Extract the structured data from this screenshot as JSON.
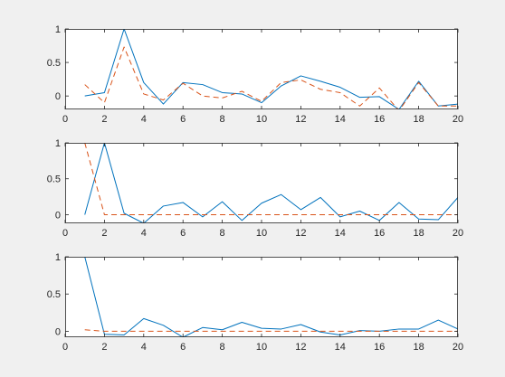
{
  "figure": {
    "background": "#f0f0f0",
    "axes_color": "#262626"
  },
  "colors": {
    "solid": "#0072bd",
    "dashed": "#d95319"
  },
  "chart_data": [
    {
      "type": "line",
      "xlim": [
        0,
        20
      ],
      "ylim": [
        -0.2,
        1
      ],
      "xticks": [
        0,
        2,
        4,
        6,
        8,
        10,
        12,
        14,
        16,
        18,
        20
      ],
      "yticks": [
        0,
        0.5,
        1
      ],
      "xtick_labels": [
        "0",
        "2",
        "4",
        "6",
        "8",
        "10",
        "12",
        "14",
        "16",
        "18",
        "20"
      ],
      "ytick_labels": [
        "0",
        "0.5",
        "1"
      ],
      "grid": false,
      "series": [
        {
          "style": "solid",
          "color": "#0072bd",
          "x": [
            1,
            2,
            3,
            4,
            5,
            6,
            7,
            8,
            9,
            10,
            11,
            12,
            13,
            14,
            15,
            16,
            17,
            18,
            19,
            20
          ],
          "values": [
            0.0,
            0.05,
            1.0,
            0.2,
            -0.12,
            0.2,
            0.17,
            0.05,
            0.03,
            -0.1,
            0.15,
            0.3,
            0.22,
            0.13,
            -0.02,
            -0.01,
            -0.2,
            0.22,
            -0.15,
            -0.12
          ]
        },
        {
          "style": "dashed",
          "color": "#d95319",
          "x": [
            1,
            2,
            3,
            4,
            5,
            6,
            7,
            8,
            9,
            10,
            11,
            12,
            13,
            14,
            15,
            16,
            17,
            18,
            19,
            20
          ],
          "values": [
            0.17,
            -0.1,
            0.73,
            0.03,
            -0.06,
            0.19,
            0.0,
            -0.03,
            0.07,
            -0.08,
            0.2,
            0.24,
            0.1,
            0.05,
            -0.15,
            0.12,
            -0.22,
            0.2,
            -0.15,
            -0.15
          ]
        }
      ]
    },
    {
      "type": "line",
      "xlim": [
        0,
        20
      ],
      "ylim": [
        -0.12,
        1
      ],
      "xticks": [
        0,
        2,
        4,
        6,
        8,
        10,
        12,
        14,
        16,
        18,
        20
      ],
      "yticks": [
        0,
        0.5,
        1
      ],
      "xtick_labels": [
        "0",
        "2",
        "4",
        "6",
        "8",
        "10",
        "12",
        "14",
        "16",
        "18",
        "20"
      ],
      "ytick_labels": [
        "0",
        "0.5",
        "1"
      ],
      "grid": false,
      "series": [
        {
          "style": "solid",
          "color": "#0072bd",
          "x": [
            1,
            2,
            3,
            4,
            5,
            6,
            7,
            8,
            9,
            10,
            11,
            12,
            13,
            14,
            15,
            16,
            17,
            18,
            19,
            20
          ],
          "values": [
            0.0,
            1.0,
            0.02,
            -0.12,
            0.12,
            0.17,
            -0.03,
            0.18,
            -0.08,
            0.16,
            0.28,
            0.07,
            0.24,
            -0.03,
            0.05,
            -0.08,
            0.17,
            -0.06,
            -0.07,
            0.24
          ]
        },
        {
          "style": "dashed",
          "color": "#d95319",
          "x": [
            1,
            2,
            3,
            4,
            5,
            6,
            7,
            8,
            9,
            10,
            11,
            12,
            13,
            14,
            15,
            16,
            17,
            18,
            19,
            20
          ],
          "values": [
            1.0,
            0.0,
            0.0,
            0.0,
            0.0,
            0.0,
            0.0,
            0.0,
            0.0,
            0.0,
            0.0,
            0.0,
            0.0,
            0.0,
            0.0,
            0.0,
            0.0,
            0.0,
            0.0,
            0.0
          ]
        }
      ]
    },
    {
      "type": "line",
      "xlim": [
        0,
        20
      ],
      "ylim": [
        -0.08,
        1
      ],
      "xticks": [
        0,
        2,
        4,
        6,
        8,
        10,
        12,
        14,
        16,
        18,
        20
      ],
      "yticks": [
        0,
        0.5,
        1
      ],
      "xtick_labels": [
        "0",
        "2",
        "4",
        "6",
        "8",
        "10",
        "12",
        "14",
        "16",
        "18",
        "20"
      ],
      "ytick_labels": [
        "0",
        "0.5",
        "1"
      ],
      "grid": false,
      "series": [
        {
          "style": "solid",
          "color": "#0072bd",
          "x": [
            1,
            2,
            3,
            4,
            5,
            6,
            7,
            8,
            9,
            10,
            11,
            12,
            13,
            14,
            15,
            16,
            17,
            18,
            19,
            20
          ],
          "values": [
            1.0,
            -0.04,
            -0.05,
            0.17,
            0.08,
            -0.08,
            0.05,
            0.02,
            0.12,
            0.04,
            0.03,
            0.09,
            -0.01,
            -0.05,
            0.01,
            0.0,
            0.03,
            0.03,
            0.15,
            0.03
          ]
        },
        {
          "style": "dashed",
          "color": "#d95319",
          "x": [
            1,
            2,
            3,
            4,
            5,
            6,
            7,
            8,
            9,
            10,
            11,
            12,
            13,
            14,
            15,
            16,
            17,
            18,
            19,
            20
          ],
          "values": [
            0.02,
            0.0,
            0.0,
            0.0,
            0.0,
            0.0,
            0.0,
            0.0,
            0.0,
            0.0,
            0.0,
            0.0,
            0.0,
            0.0,
            0.0,
            0.0,
            0.0,
            0.0,
            0.0,
            0.0
          ]
        }
      ]
    }
  ]
}
